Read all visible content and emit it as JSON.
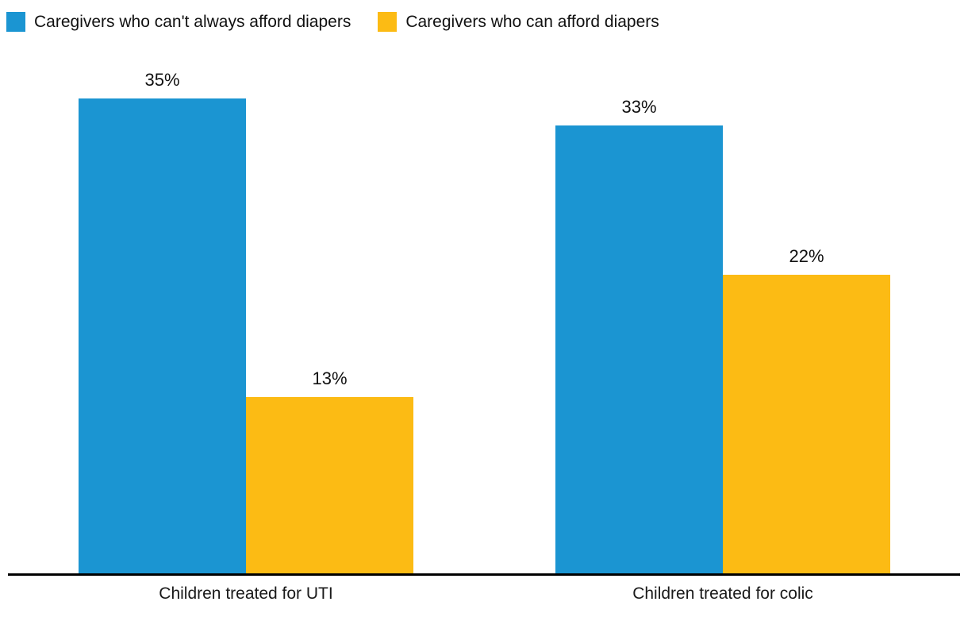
{
  "chart_data": {
    "type": "bar",
    "title": "",
    "xlabel": "",
    "ylabel": "",
    "categories": [
      "Children treated for UTI",
      "Children treated for colic"
    ],
    "series": [
      {
        "name": "Caregivers who can't always afford diapers",
        "color": "#1b95d2",
        "values": [
          35,
          33
        ],
        "labels": [
          "35%",
          "33%"
        ]
      },
      {
        "name": "Caregivers who can afford diapers",
        "color": "#fcbb14",
        "values": [
          13,
          22
        ],
        "labels": [
          "13%",
          "22%"
        ]
      }
    ],
    "ylim": [
      0,
      35
    ],
    "grid": false,
    "y_axis_visible": false,
    "legend_position": "top-left",
    "value_label_format": "percent",
    "axis_color": "#000000",
    "text_color": "#111111"
  }
}
